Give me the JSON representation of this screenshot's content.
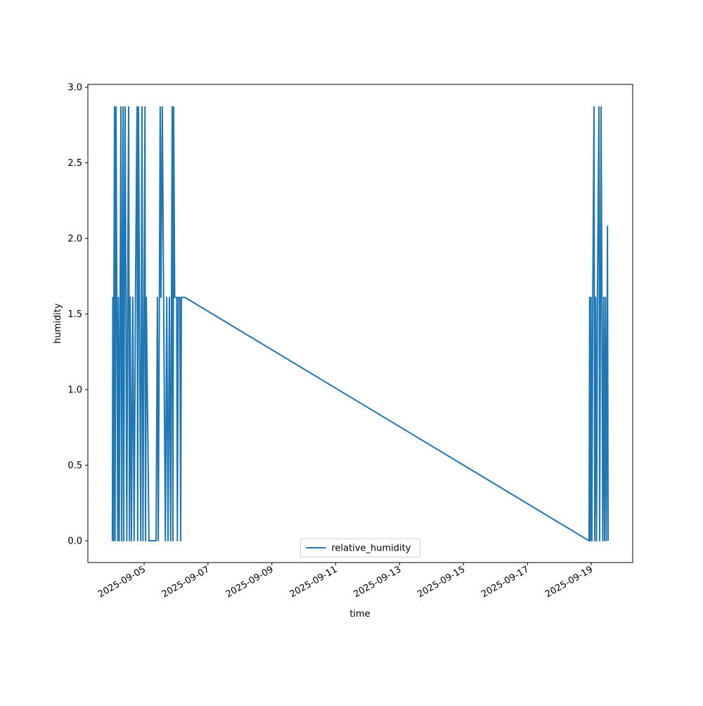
{
  "chart_data": {
    "type": "line",
    "xlabel": "time",
    "ylabel": "humidity",
    "x": [
      "2025-09-04T00:10",
      "2025-09-04T00:30",
      "2025-09-04T01:00",
      "2025-09-04T01:20",
      "2025-09-04T01:48",
      "2025-09-04T02:10",
      "2025-09-04T02:54",
      "2025-09-04T03:30",
      "2025-09-04T04:10",
      "2025-09-04T04:40",
      "2025-09-04T05:20",
      "2025-09-04T06:00",
      "2025-09-04T06:36",
      "2025-09-04T07:10",
      "2025-09-04T07:40",
      "2025-09-04T08:12",
      "2025-09-04T08:40",
      "2025-09-04T09:10",
      "2025-09-04T09:42",
      "2025-09-04T10:20",
      "2025-09-04T11:00",
      "2025-09-04T11:40",
      "2025-09-04T12:24",
      "2025-09-04T13:00",
      "2025-09-04T13:30",
      "2025-09-04T14:30",
      "2025-09-04T15:30",
      "2025-09-04T16:30",
      "2025-09-04T17:30",
      "2025-09-04T18:42",
      "2025-09-04T19:10",
      "2025-09-04T19:48",
      "2025-09-04T20:30",
      "2025-09-04T21:30",
      "2025-09-04T22:24",
      "2025-09-04T23:10",
      "2025-09-05T00:00",
      "2025-09-05T00:40",
      "2025-09-05T01:06",
      "2025-09-05T01:40",
      "2025-09-05T03:40",
      "2025-09-05T09:00",
      "2025-09-05T10:00",
      "2025-09-05T10:40",
      "2025-09-05T11:30",
      "2025-09-05T12:06",
      "2025-09-05T12:40",
      "2025-09-05T13:40",
      "2025-09-05T14:40",
      "2025-09-05T16:00",
      "2025-09-05T17:00",
      "2025-09-05T18:00",
      "2025-09-05T19:00",
      "2025-09-05T20:00",
      "2025-09-05T21:06",
      "2025-09-05T21:40",
      "2025-09-05T22:12",
      "2025-09-05T23:00",
      "2025-09-06T00:30",
      "2025-09-06T01:00",
      "2025-09-06T01:40",
      "2025-09-06T02:50",
      "2025-09-06T03:30",
      "2025-09-06T04:00",
      "2025-09-06T05:40",
      "2025-09-06T06:40",
      "2025-09-18T22:24",
      "2025-09-18T22:50",
      "2025-09-18T23:20",
      "2025-09-18T23:50",
      "2025-09-19T00:30",
      "2025-09-19T01:10",
      "2025-09-19T02:06",
      "2025-09-19T02:40",
      "2025-09-19T03:20",
      "2025-09-19T04:00",
      "2025-09-19T04:40",
      "2025-09-19T05:48",
      "2025-09-19T06:20",
      "2025-09-19T07:24",
      "2025-09-19T08:00",
      "2025-09-19T08:40",
      "2025-09-19T09:20",
      "2025-09-19T10:00",
      "2025-09-19T10:40",
      "2025-09-19T11:20",
      "2025-09-19T12:12",
      "2025-09-19T12:42"
    ],
    "series": [
      {
        "name": "relative_humidity",
        "color": "#1f77b4",
        "values": [
          0,
          1.61,
          0,
          1.61,
          2.87,
          0,
          2.87,
          1.61,
          0,
          1.61,
          0,
          1.61,
          2.87,
          0,
          1.61,
          2.87,
          0,
          1.61,
          2.87,
          1.61,
          0,
          1.61,
          2.87,
          0,
          1.61,
          0,
          1.61,
          0,
          1.61,
          2.87,
          0,
          2.87,
          1.61,
          0,
          2.87,
          0,
          1.61,
          2.87,
          0,
          1.61,
          0,
          0,
          1.61,
          0,
          1.61,
          2.87,
          1.61,
          2.87,
          1.61,
          0,
          1.61,
          0,
          1.61,
          0,
          2.87,
          0,
          2.87,
          1.61,
          1.61,
          0,
          1.61,
          1.61,
          0,
          1.61,
          1.61,
          1.61,
          0,
          1.61,
          0,
          1.61,
          0,
          1.61,
          2.87,
          0,
          1.61,
          0,
          1.61,
          2.87,
          0,
          2.87,
          1.61,
          0,
          1.61,
          0,
          1.61,
          0,
          2.08,
          0
        ]
      }
    ],
    "xlim": [
      "2025-09-03T05:45",
      "2025-09-20T07:10"
    ],
    "xticks": [
      "2025-09-05",
      "2025-09-07",
      "2025-09-09",
      "2025-09-11",
      "2025-09-13",
      "2025-09-15",
      "2025-09-17",
      "2025-09-19"
    ],
    "ylim": [
      -0.144,
      3.019
    ],
    "yticks": [
      {
        "value": 0,
        "label": "0.0"
      },
      0.5,
      {
        "value": 1,
        "label": "1.0"
      },
      1.5,
      {
        "value": 2,
        "label": "2.0"
      },
      2.5,
      {
        "value": 3,
        "label": "3.0"
      }
    ],
    "legend": "lower center"
  }
}
